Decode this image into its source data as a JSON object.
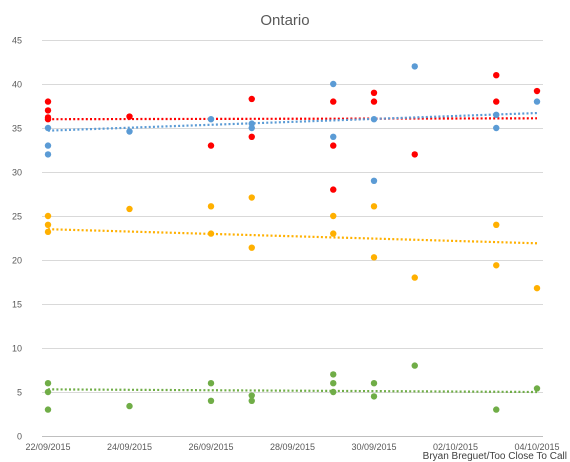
{
  "chart_data": {
    "type": "scatter",
    "title": "Ontario",
    "credit": "Bryan Breguet/Too Close To Call",
    "ylim": [
      0,
      45
    ],
    "yticks": [
      0,
      5,
      10,
      15,
      20,
      25,
      30,
      35,
      40,
      45
    ],
    "xlim": [
      "2015-09-22",
      "2015-10-04"
    ],
    "xticks": [
      {
        "date": "2015-09-22",
        "label": "22/09/2015"
      },
      {
        "date": "2015-09-24",
        "label": "24/09/2015"
      },
      {
        "date": "2015-09-26",
        "label": "26/09/2015"
      },
      {
        "date": "2015-09-28",
        "label": "28/09/2015"
      },
      {
        "date": "2015-09-30",
        "label": "30/09/2015"
      },
      {
        "date": "2015-10-02",
        "label": "02/10/2015"
      },
      {
        "date": "2015-10-04",
        "label": "04/10/2015"
      }
    ],
    "grid": "horizontal",
    "legend": "none",
    "series": [
      {
        "color": "#ff0000",
        "points": [
          [
            "2015-09-22",
            38
          ],
          [
            "2015-09-22",
            37
          ],
          [
            "2015-09-22",
            36.2
          ],
          [
            "2015-09-22",
            36
          ],
          [
            "2015-09-24",
            36.3
          ],
          [
            "2015-09-26",
            33
          ],
          [
            "2015-09-27",
            38.3
          ],
          [
            "2015-09-27",
            34
          ],
          [
            "2015-09-29",
            38
          ],
          [
            "2015-09-29",
            33
          ],
          [
            "2015-09-29",
            28
          ],
          [
            "2015-09-30",
            39
          ],
          [
            "2015-09-30",
            38
          ],
          [
            "2015-10-01",
            32
          ],
          [
            "2015-10-03",
            41
          ],
          [
            "2015-10-03",
            38
          ],
          [
            "2015-10-04",
            39.2
          ]
        ],
        "trend": [
          [
            "2015-09-22",
            36
          ],
          [
            "2015-10-04",
            36.1
          ]
        ]
      },
      {
        "color": "#5b9bd5",
        "points": [
          [
            "2015-09-22",
            35
          ],
          [
            "2015-09-22",
            33
          ],
          [
            "2015-09-22",
            32
          ],
          [
            "2015-09-24",
            34.6
          ],
          [
            "2015-09-26",
            36
          ],
          [
            "2015-09-27",
            35.5
          ],
          [
            "2015-09-27",
            35
          ],
          [
            "2015-09-29",
            40
          ],
          [
            "2015-09-29",
            34
          ],
          [
            "2015-09-30",
            36
          ],
          [
            "2015-09-30",
            29
          ],
          [
            "2015-10-01",
            42
          ],
          [
            "2015-10-03",
            36.5
          ],
          [
            "2015-10-03",
            35
          ],
          [
            "2015-10-04",
            38
          ]
        ],
        "trend": [
          [
            "2015-09-22",
            34.7
          ],
          [
            "2015-10-04",
            36.7
          ]
        ]
      },
      {
        "color": "#ffb000",
        "points": [
          [
            "2015-09-22",
            25
          ],
          [
            "2015-09-22",
            24
          ],
          [
            "2015-09-22",
            23.2
          ],
          [
            "2015-09-24",
            25.8
          ],
          [
            "2015-09-26",
            26.1
          ],
          [
            "2015-09-26",
            23
          ],
          [
            "2015-09-27",
            27.1
          ],
          [
            "2015-09-27",
            21.4
          ],
          [
            "2015-09-29",
            25
          ],
          [
            "2015-09-29",
            23
          ],
          [
            "2015-09-30",
            26.1
          ],
          [
            "2015-09-30",
            20.3
          ],
          [
            "2015-10-01",
            18
          ],
          [
            "2015-10-03",
            24
          ],
          [
            "2015-10-03",
            19.4
          ],
          [
            "2015-10-04",
            16.8
          ]
        ],
        "trend": [
          [
            "2015-09-22",
            23.5
          ],
          [
            "2015-10-04",
            21.9
          ]
        ]
      },
      {
        "color": "#70ad47",
        "points": [
          [
            "2015-09-22",
            6
          ],
          [
            "2015-09-22",
            5
          ],
          [
            "2015-09-22",
            3
          ],
          [
            "2015-09-24",
            3.4
          ],
          [
            "2015-09-26",
            6
          ],
          [
            "2015-09-26",
            4
          ],
          [
            "2015-09-27",
            4.6
          ],
          [
            "2015-09-27",
            4
          ],
          [
            "2015-09-29",
            7
          ],
          [
            "2015-09-29",
            6
          ],
          [
            "2015-09-29",
            5
          ],
          [
            "2015-09-30",
            6
          ],
          [
            "2015-09-30",
            4.5
          ],
          [
            "2015-10-01",
            8
          ],
          [
            "2015-10-03",
            3
          ],
          [
            "2015-10-04",
            5.4
          ]
        ],
        "trend": [
          [
            "2015-09-22",
            5.3
          ],
          [
            "2015-10-04",
            5.0
          ]
        ]
      }
    ]
  }
}
